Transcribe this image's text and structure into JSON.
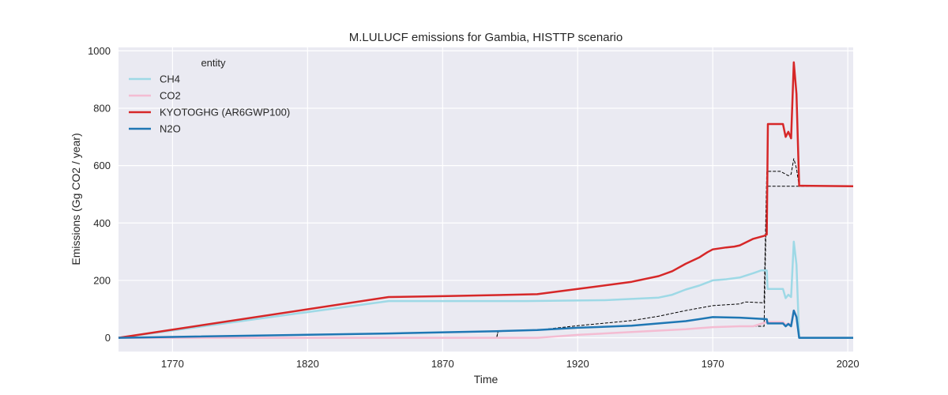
{
  "chart_data": {
    "type": "line",
    "title": "M.LULUCF emissions for Gambia, HISTTP scenario",
    "xlabel": "Time",
    "ylabel": "Emissions (Gg CO2 / year)",
    "xlim": [
      1750,
      2022
    ],
    "ylim": [
      -48,
      1012
    ],
    "xticks": [
      1770,
      1820,
      1870,
      1920,
      1970,
      2020
    ],
    "yticks": [
      0,
      200,
      400,
      600,
      800,
      1000
    ],
    "grid": true,
    "legend": {
      "title": "entity",
      "position": "top-left"
    },
    "series": [
      {
        "name": "CH4",
        "color": "#9ed9e6",
        "points": [
          [
            1750,
            0
          ],
          [
            1850,
            128
          ],
          [
            1900,
            128
          ],
          [
            1930,
            131
          ],
          [
            1950,
            140
          ],
          [
            1955,
            150
          ],
          [
            1960,
            168
          ],
          [
            1965,
            182
          ],
          [
            1970,
            200
          ],
          [
            1975,
            204
          ],
          [
            1980,
            210
          ],
          [
            1985,
            225
          ],
          [
            1988,
            235
          ],
          [
            1990,
            235
          ],
          [
            1990.3,
            170
          ],
          [
            1996,
            170
          ],
          [
            1997,
            138
          ],
          [
            1998,
            150
          ],
          [
            1999,
            142
          ],
          [
            2000,
            335
          ],
          [
            2001,
            255
          ],
          [
            2002,
            0
          ],
          [
            2022,
            0
          ]
        ]
      },
      {
        "name": "CO2",
        "color": "#f4bcd2",
        "points": [
          [
            1750,
            0
          ],
          [
            1905,
            0
          ],
          [
            1920,
            10
          ],
          [
            1940,
            20
          ],
          [
            1960,
            30
          ],
          [
            1970,
            37
          ],
          [
            1980,
            40
          ],
          [
            1985,
            40
          ],
          [
            1990,
            55
          ],
          [
            1996,
            55
          ],
          [
            1997,
            45
          ],
          [
            1998,
            50
          ],
          [
            1999,
            45
          ],
          [
            2000,
            95
          ],
          [
            2001,
            75
          ],
          [
            2002,
            0
          ],
          [
            2022,
            0
          ]
        ]
      },
      {
        "name": "KYOTOGHG (AR6GWP100)",
        "color": "#d62728",
        "points": [
          [
            1750,
            0
          ],
          [
            1850,
            142
          ],
          [
            1870,
            145
          ],
          [
            1905,
            152
          ],
          [
            1920,
            170
          ],
          [
            1940,
            195
          ],
          [
            1950,
            215
          ],
          [
            1955,
            232
          ],
          [
            1960,
            258
          ],
          [
            1965,
            280
          ],
          [
            1968,
            298
          ],
          [
            1970,
            308
          ],
          [
            1975,
            315
          ],
          [
            1978,
            318
          ],
          [
            1980,
            322
          ],
          [
            1985,
            345
          ],
          [
            1989,
            355
          ],
          [
            1990,
            360
          ],
          [
            1990.4,
            745
          ],
          [
            1996,
            745
          ],
          [
            1997,
            700
          ],
          [
            1998,
            718
          ],
          [
            1999,
            695
          ],
          [
            2000,
            960
          ],
          [
            2001,
            850
          ],
          [
            2002,
            530
          ],
          [
            2022,
            528
          ]
        ]
      },
      {
        "name": "N2O",
        "color": "#1f77b4",
        "points": [
          [
            1750,
            0
          ],
          [
            1850,
            15
          ],
          [
            1890,
            23
          ],
          [
            1905,
            27
          ],
          [
            1920,
            35
          ],
          [
            1940,
            42
          ],
          [
            1960,
            58
          ],
          [
            1970,
            72
          ],
          [
            1980,
            70
          ],
          [
            1990,
            65
          ],
          [
            1990.3,
            50
          ],
          [
            1996,
            50
          ],
          [
            1997,
            40
          ],
          [
            1998,
            48
          ],
          [
            1999,
            40
          ],
          [
            2000,
            95
          ],
          [
            2001,
            72
          ],
          [
            2002,
            0
          ],
          [
            2022,
            0
          ]
        ]
      }
    ],
    "reference_series": [
      {
        "color": "#000000",
        "dashed": true,
        "points": [
          [
            1890,
            0
          ],
          [
            1890.5,
            22
          ],
          [
            1905,
            27
          ],
          [
            1920,
            42
          ],
          [
            1940,
            60
          ],
          [
            1950,
            75
          ],
          [
            1960,
            95
          ],
          [
            1970,
            112
          ],
          [
            1980,
            118
          ],
          [
            1982,
            125
          ],
          [
            1989,
            122
          ],
          [
            1990,
            580
          ],
          [
            1995,
            580
          ],
          [
            1997,
            570
          ],
          [
            1998,
            565
          ],
          [
            1999,
            570
          ],
          [
            2000,
            625
          ],
          [
            2001,
            590
          ],
          [
            2002,
            528
          ],
          [
            2022,
            528
          ]
        ]
      },
      {
        "color": "#000000",
        "dashed": true,
        "points": [
          [
            1750,
            0
          ],
          [
            1890,
            0
          ],
          [
            1890.5,
            22
          ],
          [
            1905,
            27
          ],
          [
            1920,
            35
          ],
          [
            1940,
            42
          ],
          [
            1960,
            58
          ],
          [
            1970,
            72
          ],
          [
            1980,
            70
          ],
          [
            1990,
            65
          ],
          [
            1990.3,
            50
          ],
          [
            1996,
            50
          ],
          [
            1997,
            40
          ],
          [
            1998,
            48
          ],
          [
            1999,
            40
          ],
          [
            2000,
            95
          ],
          [
            2001,
            72
          ],
          [
            2002,
            0
          ],
          [
            2022,
            0
          ]
        ]
      },
      {
        "color": "#000000",
        "dashed": true,
        "points": [
          [
            1750,
            0
          ],
          [
            1905,
            0
          ],
          [
            1920,
            10
          ],
          [
            1940,
            20
          ],
          [
            1960,
            30
          ],
          [
            1970,
            37
          ],
          [
            1980,
            40
          ],
          [
            1985,
            40
          ],
          [
            1989,
            40
          ],
          [
            1990,
            528
          ],
          [
            2022,
            528
          ]
        ]
      }
    ]
  }
}
